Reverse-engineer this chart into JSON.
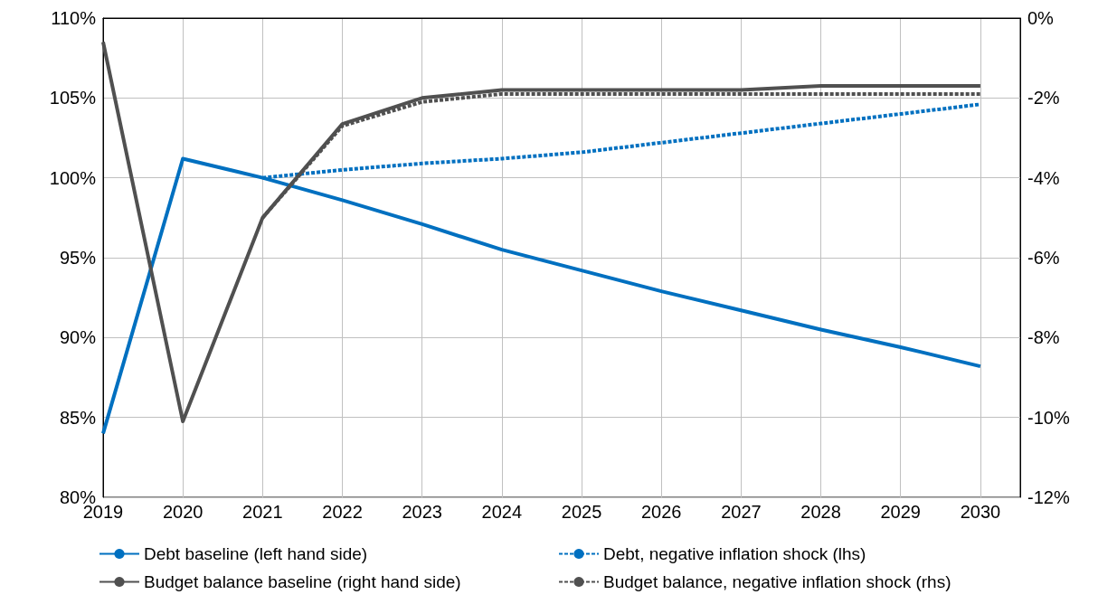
{
  "chart_data": {
    "type": "line",
    "x": [
      2019,
      2020,
      2021,
      2022,
      2023,
      2024,
      2025,
      2026,
      2027,
      2028,
      2029,
      2030
    ],
    "xlim": [
      2019,
      2030.5
    ],
    "xticks": [
      2019,
      2020,
      2021,
      2022,
      2023,
      2024,
      2025,
      2026,
      2027,
      2028,
      2029,
      2030
    ],
    "ylim": [
      80,
      110
    ],
    "yticks": [
      {
        "value": 80,
        "label": "80%"
      },
      {
        "value": 85,
        "label": "85%"
      },
      {
        "value": 90,
        "label": "90%"
      },
      {
        "value": 95,
        "label": "95%"
      },
      {
        "value": 100,
        "label": "100%"
      },
      {
        "value": 105,
        "label": "105%"
      },
      {
        "value": 110,
        "label": "110%"
      }
    ],
    "y2lim": [
      -12,
      0
    ],
    "y2ticks": [
      {
        "value": -12,
        "label": "-12%"
      },
      {
        "value": -10,
        "label": "-10%"
      },
      {
        "value": -8,
        "label": "-8%"
      },
      {
        "value": -6,
        "label": "-6%"
      },
      {
        "value": -4,
        "label": "-4%"
      },
      {
        "value": -2,
        "label": "-2%"
      },
      {
        "value": 0,
        "label": "0%"
      }
    ],
    "grid": true,
    "legend": "bottom",
    "marker": "none",
    "series": [
      {
        "name": "Debt baseline (left hand side)",
        "color": "#0070c0",
        "line_style": "solid",
        "values": [
          84.0,
          101.2,
          100.0,
          98.6,
          97.1,
          95.5,
          94.2,
          92.9,
          91.7,
          90.5,
          89.4,
          88.2
        ]
      },
      {
        "name": "Debt, negative inflation shock (lhs)",
        "color": "#0070c0",
        "line_style": "dashed",
        "values": [
          null,
          null,
          100.0,
          100.5,
          100.9,
          101.2,
          101.6,
          102.2,
          102.8,
          103.4,
          104.0,
          104.6
        ]
      },
      {
        "name": "Budget balance baseline (right hand side)",
        "color": "#505050",
        "line_style": "solid",
        "axis": "y2",
        "values": [
          -0.6,
          -10.1,
          -5.0,
          -2.65,
          -2.0,
          -1.8,
          -1.8,
          -1.8,
          -1.8,
          -1.7,
          -1.7,
          -1.7
        ]
      },
      {
        "name": "Budget balance, negative inflation shock (rhs)",
        "color": "#505050",
        "line_style": "dashed",
        "axis": "y2",
        "values": [
          null,
          null,
          -5.0,
          -2.7,
          -2.1,
          -1.9,
          -1.9,
          -1.9,
          -1.9,
          -1.9,
          -1.9,
          -1.9
        ]
      }
    ]
  }
}
